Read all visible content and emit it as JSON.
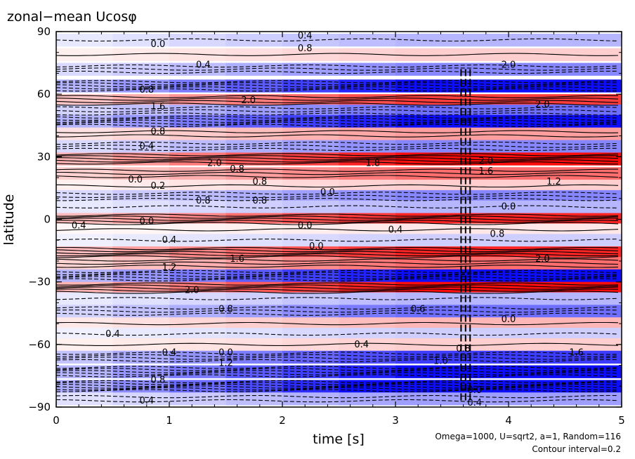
{
  "chart_data": {
    "type": "heatmap",
    "title": "zonal−mean Ucosφ",
    "xlabel": "time [s]",
    "ylabel": "latitude",
    "xlim": [
      0,
      5
    ],
    "ylim": [
      -90,
      90
    ],
    "x_ticks": [
      "0",
      "1",
      "2",
      "3",
      "4",
      "5"
    ],
    "y_ticks": [
      "90",
      "60",
      "30",
      "0",
      "−30",
      "−60",
      "−90"
    ],
    "x_tick_values": [
      0,
      1,
      2,
      3,
      4,
      5
    ],
    "y_tick_values": [
      90,
      60,
      30,
      0,
      -30,
      -60,
      -90
    ],
    "annotations": [
      "Omega=1000, U=sqrt2, a=1, Random=116",
      "Contour interval=0.2"
    ],
    "contour_interval": 0.2,
    "colors": {
      "positive": "#ff0000",
      "negative": "#0000ff",
      "background": "#ffffff"
    },
    "bands": [
      {
        "lat": 86,
        "value": -0.6
      },
      {
        "lat": 79,
        "value": 0.4
      },
      {
        "lat": 72,
        "value": -1.0
      },
      {
        "lat": 64,
        "value": -2.0
      },
      {
        "lat": 57,
        "value": 1.6
      },
      {
        "lat": 52,
        "value": -1.2
      },
      {
        "lat": 47,
        "value": -2.0
      },
      {
        "lat": 41,
        "value": 0.8
      },
      {
        "lat": 35,
        "value": -1.0
      },
      {
        "lat": 29,
        "value": 2.0
      },
      {
        "lat": 22,
        "value": 1.2
      },
      {
        "lat": 16,
        "value": 0.4
      },
      {
        "lat": 11,
        "value": -1.0
      },
      {
        "lat": 6,
        "value": -0.6
      },
      {
        "lat": 0,
        "value": 1.8
      },
      {
        "lat": -5,
        "value": 0.2
      },
      {
        "lat": -10,
        "value": -0.4
      },
      {
        "lat": -16,
        "value": 1.8
      },
      {
        "lat": -21,
        "value": 1.2
      },
      {
        "lat": -27,
        "value": -2.0
      },
      {
        "lat": -33,
        "value": 2.0
      },
      {
        "lat": -38,
        "value": -0.6
      },
      {
        "lat": -44,
        "value": -1.2
      },
      {
        "lat": -50,
        "value": 0.6
      },
      {
        "lat": -55,
        "value": -0.4
      },
      {
        "lat": -60,
        "value": 0.4
      },
      {
        "lat": -66,
        "value": -1.6
      },
      {
        "lat": -73,
        "value": -2.0
      },
      {
        "lat": -80,
        "value": -2.2
      },
      {
        "lat": -86,
        "value": -0.8
      }
    ],
    "contour_labels": [
      {
        "x": 0.9,
        "lat": 84,
        "text": "0.0"
      },
      {
        "x": 2.2,
        "lat": 88,
        "text": "0.4"
      },
      {
        "x": 2.2,
        "lat": 82,
        "text": "0.8"
      },
      {
        "x": 1.3,
        "lat": 74,
        "text": "0.4"
      },
      {
        "x": 4.0,
        "lat": 74,
        "text": "2.0"
      },
      {
        "x": 0.8,
        "lat": 62,
        "text": "0.8"
      },
      {
        "x": 0.9,
        "lat": 54,
        "text": "1.6"
      },
      {
        "x": 1.7,
        "lat": 57,
        "text": "2.0"
      },
      {
        "x": 4.3,
        "lat": 55,
        "text": "2.0"
      },
      {
        "x": 0.9,
        "lat": 42,
        "text": "0.8"
      },
      {
        "x": 0.8,
        "lat": 35,
        "text": "0.4"
      },
      {
        "x": 1.4,
        "lat": 27,
        "text": "2.0"
      },
      {
        "x": 2.8,
        "lat": 27,
        "text": "1.8"
      },
      {
        "x": 3.8,
        "lat": 28,
        "text": "2.0"
      },
      {
        "x": 1.6,
        "lat": 24,
        "text": "0.8"
      },
      {
        "x": 3.8,
        "lat": 23,
        "text": "1.6"
      },
      {
        "x": 0.7,
        "lat": 19,
        "text": "0.0"
      },
      {
        "x": 0.9,
        "lat": 16,
        "text": "0.2"
      },
      {
        "x": 1.8,
        "lat": 18,
        "text": "0.8"
      },
      {
        "x": 4.4,
        "lat": 18,
        "text": "1.2"
      },
      {
        "x": 2.4,
        "lat": 13,
        "text": "0.0"
      },
      {
        "x": 1.3,
        "lat": 9,
        "text": "0.8"
      },
      {
        "x": 1.8,
        "lat": 9,
        "text": "0.8"
      },
      {
        "x": 4.0,
        "lat": 6,
        "text": "0.0"
      },
      {
        "x": 0.2,
        "lat": -3,
        "text": "0.4"
      },
      {
        "x": 0.8,
        "lat": -1,
        "text": "0.0"
      },
      {
        "x": 2.2,
        "lat": -3,
        "text": "0.0"
      },
      {
        "x": 3.0,
        "lat": -5,
        "text": "0.4"
      },
      {
        "x": 3.9,
        "lat": -7,
        "text": "0.8"
      },
      {
        "x": 1.0,
        "lat": -10,
        "text": "0.4"
      },
      {
        "x": 2.3,
        "lat": -13,
        "text": "0.0"
      },
      {
        "x": 1.6,
        "lat": -19,
        "text": "1.6"
      },
      {
        "x": 4.3,
        "lat": -19,
        "text": "2.0"
      },
      {
        "x": 1.0,
        "lat": -23,
        "text": "1.2"
      },
      {
        "x": 1.2,
        "lat": -34,
        "text": "2.0"
      },
      {
        "x": 1.5,
        "lat": -43,
        "text": "0.8"
      },
      {
        "x": 3.2,
        "lat": -43,
        "text": "0.6"
      },
      {
        "x": 4.0,
        "lat": -48,
        "text": "0.0"
      },
      {
        "x": 0.5,
        "lat": -55,
        "text": "0.4"
      },
      {
        "x": 1.0,
        "lat": -64,
        "text": "0.4"
      },
      {
        "x": 1.5,
        "lat": -64,
        "text": "0.0"
      },
      {
        "x": 2.7,
        "lat": -60,
        "text": "0.4"
      },
      {
        "x": 3.6,
        "lat": -62,
        "text": "0.8"
      },
      {
        "x": 3.4,
        "lat": -68,
        "text": "1.0"
      },
      {
        "x": 4.6,
        "lat": -64,
        "text": "1.6"
      },
      {
        "x": 1.5,
        "lat": -69,
        "text": "1.2"
      },
      {
        "x": 0.9,
        "lat": -77,
        "text": "0.8"
      },
      {
        "x": 0.8,
        "lat": -87,
        "text": "0.4"
      },
      {
        "x": 3.7,
        "lat": -82,
        "text": "0.0"
      },
      {
        "x": 3.7,
        "lat": -88,
        "text": "0.4"
      }
    ]
  }
}
